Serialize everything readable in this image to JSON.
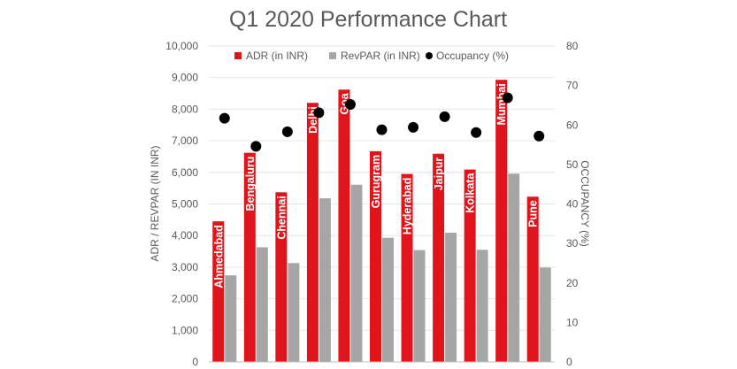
{
  "chart_data": {
    "type": "bar",
    "title": "Q1 2020 Performance Chart",
    "ylabel": "ADR / REVPAR (IN INR)",
    "y2label": "OCCUPANCY (%)",
    "ylim": [
      0,
      10000
    ],
    "y2lim": [
      0,
      80
    ],
    "yticks": [
      "0",
      "1,000",
      "2,000",
      "3,000",
      "4,000",
      "5,000",
      "6,000",
      "7,000",
      "8,000",
      "9,000",
      "10,000"
    ],
    "y2ticks": [
      "0",
      "10",
      "20",
      "30",
      "40",
      "50",
      "60",
      "70",
      "80"
    ],
    "grid": true,
    "legend_position": "top",
    "categories": [
      "Ahmedabad",
      "Bengaluru",
      "Chennai",
      "Delhi",
      "Goa",
      "Gurugram",
      "Hyderabad",
      "Jaipur",
      "Kolkata",
      "Mumbai",
      "Pune"
    ],
    "series": [
      {
        "name": "ADR (in INR)",
        "kind": "bar",
        "axis": "left",
        "color": "#e0151b",
        "values": [
          4450,
          6620,
          5370,
          8200,
          8620,
          6670,
          5950,
          6590,
          6090,
          8930,
          5230
        ]
      },
      {
        "name": "RevPAR (in INR)",
        "kind": "bar",
        "axis": "left",
        "color": "#a6a6a6",
        "values": [
          2740,
          3630,
          3130,
          5180,
          5610,
          3930,
          3540,
          4090,
          3550,
          5960,
          2990
        ]
      },
      {
        "name": "Occupancy (%)",
        "kind": "marker",
        "axis": "right",
        "color": "#000000",
        "values": [
          61.7,
          54.6,
          58.3,
          63.1,
          65.2,
          58.8,
          59.4,
          62.1,
          58.1,
          66.9,
          57.2
        ]
      }
    ]
  }
}
